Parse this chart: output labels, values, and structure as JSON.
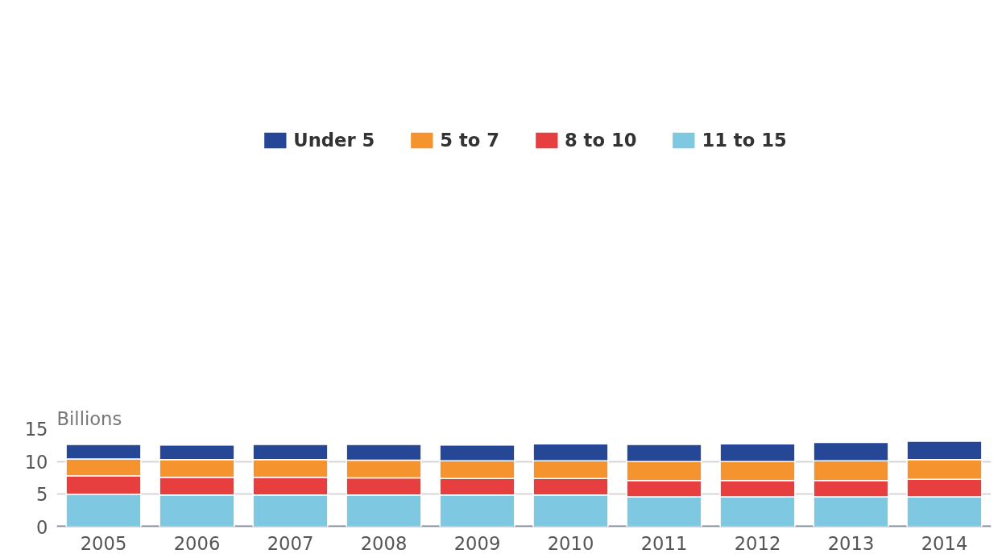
{
  "chart_data": {
    "type": "bar",
    "stacked": true,
    "ylabel": "Billions",
    "categories": [
      "2005",
      "2006",
      "2007",
      "2008",
      "2009",
      "2010",
      "2011",
      "2012",
      "2013",
      "2014"
    ],
    "series": [
      {
        "name": "11 to 15",
        "color": "#7ec8e1",
        "values": [
          5.0,
          4.9,
          4.9,
          4.9,
          4.9,
          4.9,
          4.6,
          4.6,
          4.6,
          4.6
        ]
      },
      {
        "name": "8 to 10",
        "color": "#e73e3f",
        "values": [
          2.8,
          2.7,
          2.7,
          2.6,
          2.5,
          2.5,
          2.5,
          2.5,
          2.5,
          2.7
        ]
      },
      {
        "name": "5 to 7",
        "color": "#f5932f",
        "values": [
          2.6,
          2.7,
          2.7,
          2.7,
          2.7,
          2.7,
          2.9,
          2.9,
          3.0,
          3.0
        ]
      },
      {
        "name": "Under 5",
        "color": "#264796",
        "values": [
          2.2,
          2.2,
          2.3,
          2.4,
          2.4,
          2.6,
          2.6,
          2.7,
          2.8,
          2.8
        ]
      }
    ],
    "ylim": [
      0,
      15
    ],
    "yticks": [
      0,
      5,
      10,
      15
    ],
    "grid": "y",
    "legend": "top"
  }
}
